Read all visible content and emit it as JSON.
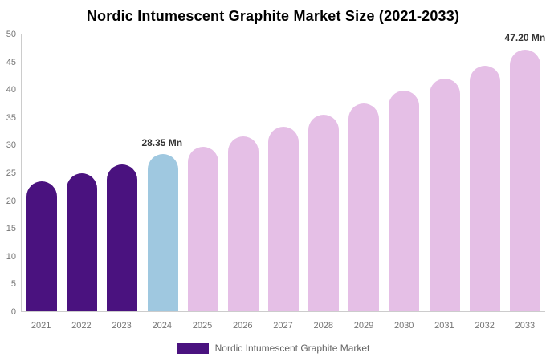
{
  "chart_data": {
    "type": "bar",
    "title": "Nordic Intumescent Graphite Market Size (2021-2033)",
    "xlabel": "",
    "ylabel": "",
    "unit": "Mn",
    "ylim": [
      0,
      50
    ],
    "ytick_step": 5,
    "yticks": [
      0,
      5,
      10,
      15,
      20,
      25,
      30,
      35,
      40,
      45,
      50
    ],
    "grid": false,
    "legend_position": "bottom",
    "series_name": "Nordic Intumescent Graphite Market",
    "categories": [
      "2021",
      "2022",
      "2023",
      "2024",
      "2025",
      "2026",
      "2027",
      "2028",
      "2029",
      "2030",
      "2031",
      "2032",
      "2033"
    ],
    "values": [
      23.5,
      25.0,
      26.5,
      28.35,
      29.7,
      31.6,
      33.3,
      35.5,
      37.6,
      39.8,
      42.1,
      44.3,
      47.2
    ],
    "bar_colors": [
      "#4a127f",
      "#4a127f",
      "#4a127f",
      "#9fc8e0",
      "#e5bfe6",
      "#e5bfe6",
      "#e5bfe6",
      "#e5bfe6",
      "#e5bfe6",
      "#e5bfe6",
      "#e5bfe6",
      "#e5bfe6",
      "#e5bfe6"
    ],
    "annotations": [
      {
        "category": "2024",
        "text": "28.35 Mn"
      },
      {
        "category": "2033",
        "text": "47.20 Mn"
      }
    ]
  },
  "colors": {
    "historical_bar": "#4a127f",
    "current_year_bar": "#9fc8e0",
    "forecast_bar": "#e5bfe6",
    "axis_line": "#cccccc",
    "axis_text": "#757575",
    "annotation_text": "#333333",
    "legend_text": "#666666",
    "background": "#ffffff"
  },
  "legend": {
    "swatch_color": "#4a127f",
    "label": "Nordic Intumescent Graphite Market"
  }
}
